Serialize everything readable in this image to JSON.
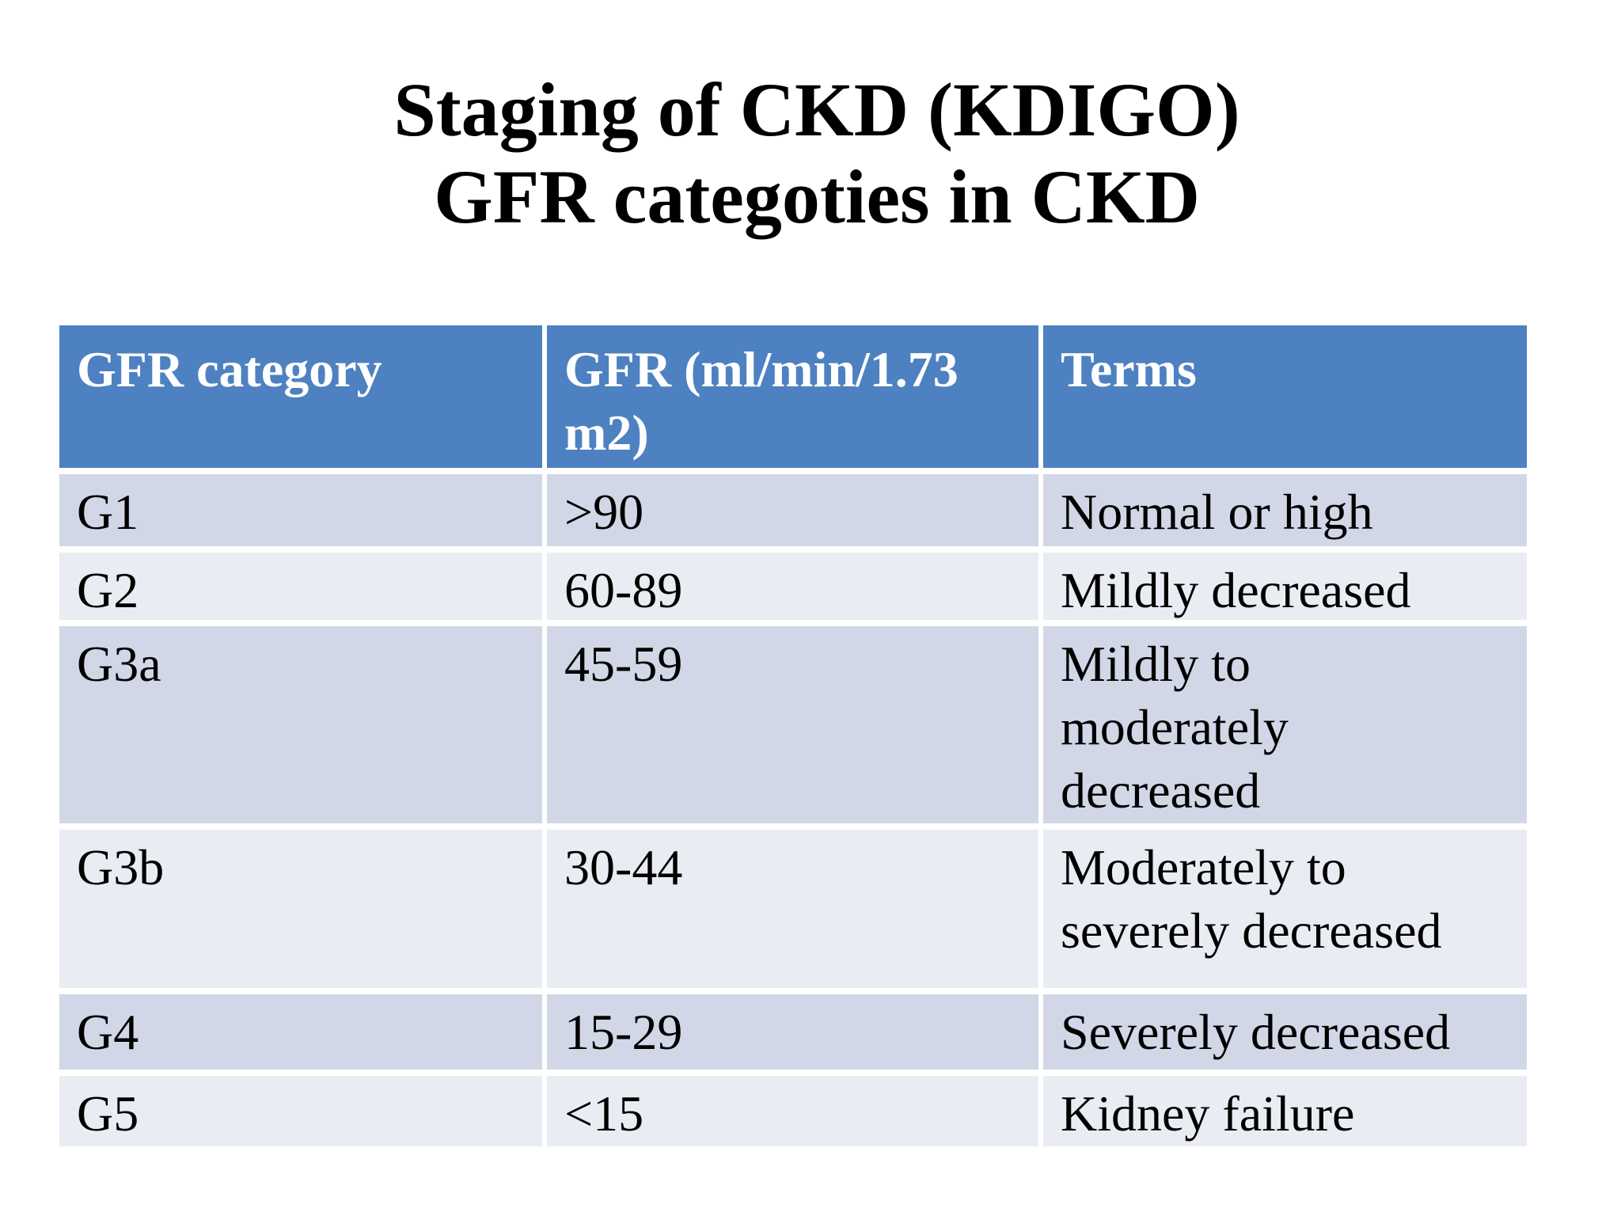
{
  "title": {
    "line1": "Staging of CKD (KDIGO)",
    "line2": "GFR categoties in CKD"
  },
  "table": {
    "columns": [
      "GFR category",
      "GFR (ml/min/1.73 m2)",
      "Terms"
    ],
    "rows": [
      {
        "category": "G1",
        "gfr": ">90",
        "terms": "Normal or high"
      },
      {
        "category": "G2",
        "gfr": "60-89",
        "terms": "Mildly decreased"
      },
      {
        "category": "G3a",
        "gfr": "45-59",
        "terms": "Mildly to moderately decreased"
      },
      {
        "category": "G3b",
        "gfr": "30-44",
        "terms": "Moderately to severely decreased"
      },
      {
        "category": "G4",
        "gfr": "15-29",
        "terms": "Severely decreased"
      },
      {
        "category": "G5",
        "gfr": "<15",
        "terms": "Kidney failure"
      }
    ],
    "colors": {
      "page_bg": "#FFFFFF",
      "header_bg": "#4E81C1",
      "header_text": "#FFFFFF",
      "band_dark": "#D1D7E6",
      "band_light": "#EAECF3",
      "body_text": "#000000",
      "border": "#FFFFFF"
    }
  }
}
